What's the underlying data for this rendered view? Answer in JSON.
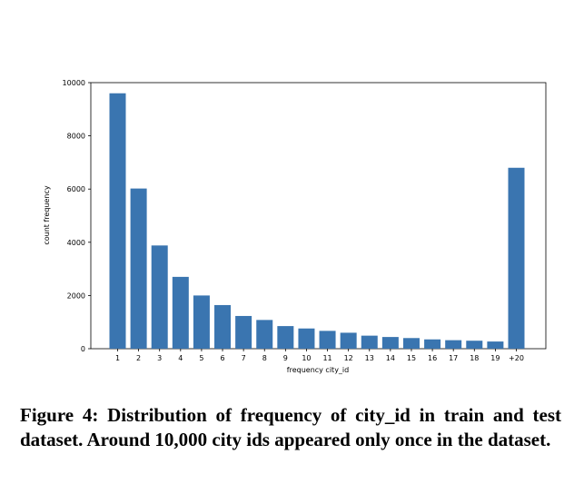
{
  "chart_data": {
    "type": "bar",
    "title": "",
    "xlabel": "frequency city_id",
    "ylabel": "count frequency",
    "categories": [
      "1",
      "2",
      "3",
      "4",
      "5",
      "6",
      "7",
      "8",
      "9",
      "10",
      "11",
      "12",
      "13",
      "14",
      "15",
      "16",
      "17",
      "18",
      "19",
      "+20"
    ],
    "values": [
      9600,
      6020,
      3880,
      2700,
      2000,
      1640,
      1230,
      1080,
      850,
      760,
      670,
      600,
      490,
      440,
      400,
      350,
      320,
      300,
      270,
      6800
    ],
    "yticks": [
      0,
      2000,
      4000,
      6000,
      8000,
      10000
    ],
    "ylim": [
      0,
      10000
    ],
    "bar_color": "#3a75b0",
    "grid": false
  },
  "caption": {
    "text": "Figure 4: Distribution of frequency of city_id in train and test dataset. Around 10,000 city ids appeared only once in the dataset."
  }
}
